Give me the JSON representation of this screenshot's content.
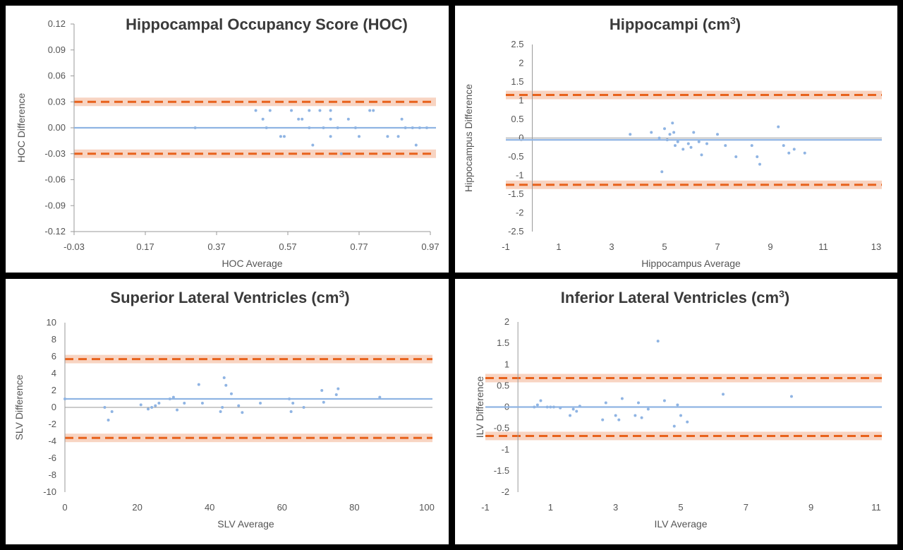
{
  "chart_data": [
    {
      "type": "scatter",
      "title": "Hippocampal Occupancy Score (HOC)",
      "title_sup": "",
      "xlabel": "HOC  Average",
      "ylabel": "HOC  Difference",
      "xlim": [
        -0.03,
        0.97
      ],
      "ylim": [
        -0.12,
        0.12
      ],
      "x_ticks": [
        "-0.03",
        "0.17",
        "0.37",
        "0.57",
        "0.77",
        "0.97"
      ],
      "y_ticks": [
        "0.12",
        "0.09",
        "0.06",
        "0.03",
        "0.00",
        "-0.03",
        "-0.06",
        "-0.09",
        "-0.12"
      ],
      "grid": false,
      "mean_line": 0.0,
      "limits": [
        0.03,
        -0.03
      ],
      "points": [
        [
          0.31,
          0
        ],
        [
          0.48,
          0.02
        ],
        [
          0.5,
          0.01
        ],
        [
          0.51,
          0
        ],
        [
          0.52,
          0.02
        ],
        [
          0.55,
          -0.01
        ],
        [
          0.56,
          -0.01
        ],
        [
          0.58,
          0.02
        ],
        [
          0.6,
          0.01
        ],
        [
          0.61,
          0.01
        ],
        [
          0.63,
          0
        ],
        [
          0.63,
          0.02
        ],
        [
          0.64,
          -0.02
        ],
        [
          0.66,
          0.02
        ],
        [
          0.67,
          0
        ],
        [
          0.69,
          0.02
        ],
        [
          0.69,
          0.01
        ],
        [
          0.69,
          -0.01
        ],
        [
          0.71,
          0
        ],
        [
          0.72,
          -0.03
        ],
        [
          0.74,
          0.01
        ],
        [
          0.76,
          0
        ],
        [
          0.77,
          -0.01
        ],
        [
          0.8,
          0.02
        ],
        [
          0.81,
          0.02
        ],
        [
          0.85,
          -0.01
        ],
        [
          0.88,
          -0.01
        ],
        [
          0.89,
          0.01
        ],
        [
          0.9,
          0
        ],
        [
          0.92,
          0
        ],
        [
          0.93,
          -0.02
        ],
        [
          0.94,
          0
        ],
        [
          0.96,
          0
        ]
      ]
    },
    {
      "type": "scatter",
      "title": "Hippocampi (cm",
      "title_sup": "3",
      "title_end": ")",
      "xlabel": "Hippocampus  Average",
      "ylabel": "Hippocampus  Difference",
      "xlim": [
        -1,
        13
      ],
      "ylim": [
        -2.5,
        2.5
      ],
      "x_ticks": [
        "-1",
        "1",
        "3",
        "5",
        "7",
        "9",
        "11",
        "13"
      ],
      "y_ticks": [
        "2.5",
        "2",
        "1.5",
        "1",
        "0.5",
        "0",
        "-0.5",
        "-1",
        "-1.5",
        "-2",
        "-2.5"
      ],
      "grid": false,
      "mean_line": -0.05,
      "limits": [
        1.15,
        -1.25
      ],
      "points": [
        [
          3.7,
          0.1
        ],
        [
          4.5,
          0.15
        ],
        [
          4.8,
          0
        ],
        [
          4.9,
          -0.9
        ],
        [
          5.0,
          0.25
        ],
        [
          5.1,
          -0.05
        ],
        [
          5.2,
          0.1
        ],
        [
          5.3,
          0.4
        ],
        [
          5.35,
          0.15
        ],
        [
          5.4,
          -0.2
        ],
        [
          5.5,
          -0.1
        ],
        [
          5.7,
          -0.3
        ],
        [
          5.9,
          -0.15
        ],
        [
          6.0,
          -0.25
        ],
        [
          6.1,
          0.15
        ],
        [
          6.3,
          -0.1
        ],
        [
          6.4,
          -0.45
        ],
        [
          6.6,
          -0.15
        ],
        [
          7.0,
          0.1
        ],
        [
          7.3,
          -0.2
        ],
        [
          7.7,
          -0.5
        ],
        [
          8.3,
          -0.2
        ],
        [
          8.5,
          -0.5
        ],
        [
          8.6,
          -0.7
        ],
        [
          9.3,
          0.3
        ],
        [
          9.5,
          -0.2
        ],
        [
          9.7,
          -0.4
        ],
        [
          9.9,
          -0.3
        ],
        [
          10.3,
          -0.4
        ]
      ]
    },
    {
      "type": "scatter",
      "title": "Superior Lateral Ventricles (cm",
      "title_sup": "3",
      "title_end": ")",
      "xlabel": "SLV Average",
      "ylabel": "SLV Difference",
      "xlim": [
        0,
        100
      ],
      "ylim": [
        -10,
        10
      ],
      "x_ticks": [
        "0",
        "20",
        "40",
        "60",
        "80",
        "100"
      ],
      "y_ticks": [
        "10",
        "8",
        "6",
        "4",
        "2",
        "0",
        "-2",
        "-4",
        "-6",
        "-8",
        "-10"
      ],
      "grid": false,
      "mean_line": 1.0,
      "limits": [
        5.7,
        -3.6
      ],
      "points": [
        [
          0,
          1
        ],
        [
          11,
          0
        ],
        [
          12,
          -1.5
        ],
        [
          13,
          -0.5
        ],
        [
          21,
          0.3
        ],
        [
          23,
          -0.2
        ],
        [
          24,
          0
        ],
        [
          25,
          0.2
        ],
        [
          26,
          0.5
        ],
        [
          29,
          1
        ],
        [
          30,
          1.2
        ],
        [
          31,
          -0.3
        ],
        [
          33,
          0.5
        ],
        [
          37,
          2.7
        ],
        [
          38,
          0.5
        ],
        [
          43,
          -0.5
        ],
        [
          43.5,
          0
        ],
        [
          44,
          3.5
        ],
        [
          44.5,
          2.6
        ],
        [
          46,
          1.6
        ],
        [
          48,
          0.2
        ],
        [
          49,
          -0.6
        ],
        [
          54,
          0.5
        ],
        [
          62,
          1
        ],
        [
          62.5,
          -0.5
        ],
        [
          63,
          0.5
        ],
        [
          66,
          0
        ],
        [
          71,
          2
        ],
        [
          71.5,
          0.6
        ],
        [
          75,
          1.5
        ],
        [
          75.5,
          2.2
        ],
        [
          87,
          1.2
        ]
      ]
    },
    {
      "type": "scatter",
      "title": "Inferior Lateral Ventricles (cm",
      "title_sup": "3",
      "title_end": ")",
      "xlabel": "ILV Average",
      "ylabel": "ILV Difference",
      "xlim": [
        -1,
        11
      ],
      "ylim": [
        -2,
        2
      ],
      "x_ticks": [
        "-1",
        "1",
        "3",
        "5",
        "7",
        "9",
        "11"
      ],
      "y_ticks": [
        "2",
        "1.5",
        "1",
        "0.5",
        "0",
        "-0.5",
        "-1",
        "-1.5",
        "-2"
      ],
      "grid": false,
      "mean_line": 0.0,
      "limits": [
        0.68,
        -0.68
      ],
      "points": [
        [
          0.5,
          0
        ],
        [
          0.6,
          0.05
        ],
        [
          0.7,
          0.15
        ],
        [
          0.9,
          0
        ],
        [
          1.0,
          0
        ],
        [
          1.1,
          0
        ],
        [
          1.3,
          -0.02
        ],
        [
          1.6,
          -0.2
        ],
        [
          1.7,
          -0.05
        ],
        [
          1.8,
          -0.1
        ],
        [
          1.9,
          0.02
        ],
        [
          2.6,
          -0.3
        ],
        [
          2.7,
          0.1
        ],
        [
          3.0,
          -0.2
        ],
        [
          3.1,
          -0.3
        ],
        [
          3.2,
          0.2
        ],
        [
          3.6,
          -0.2
        ],
        [
          3.7,
          0.1
        ],
        [
          3.8,
          -0.25
        ],
        [
          4.0,
          -0.05
        ],
        [
          4.3,
          1.55
        ],
        [
          4.5,
          0.15
        ],
        [
          4.8,
          -0.45
        ],
        [
          4.9,
          0.05
        ],
        [
          5.0,
          -0.2
        ],
        [
          5.2,
          -0.35
        ],
        [
          6.3,
          0.3
        ],
        [
          8.4,
          0.25
        ]
      ]
    }
  ],
  "colors": {
    "points": "#8fb4e3",
    "mean_line": "#8fb4e3",
    "limit_line": "#e8621c",
    "limit_band": "#f6c6ad",
    "axis": "#9a9a9a",
    "title": "#3a3a3a",
    "text": "#555555"
  }
}
